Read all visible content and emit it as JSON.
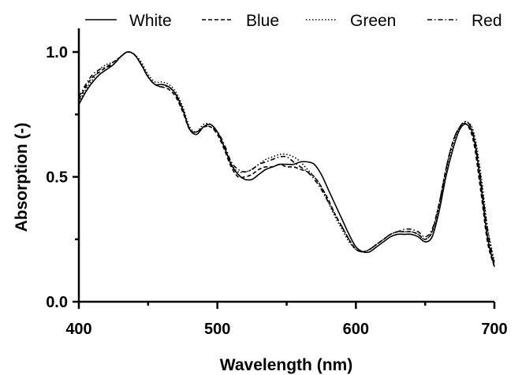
{
  "chart_data": {
    "type": "line",
    "title": "",
    "xlabel": "Wavelength (nm)",
    "ylabel": "Absorption (-)",
    "xlim": [
      400,
      700
    ],
    "ylim": [
      0.0,
      1.0
    ],
    "x_ticks": [
      "400",
      "500",
      "600",
      "700"
    ],
    "y_ticks": [
      "0.0",
      "0.5",
      "1.0"
    ],
    "legend_position": "top",
    "grid": false,
    "series": [
      {
        "name": "White",
        "style": "solid",
        "x": [
          400,
          405,
          410,
          415,
          420,
          425,
          430,
          435,
          440,
          445,
          450,
          455,
          460,
          465,
          470,
          475,
          480,
          485,
          490,
          495,
          500,
          505,
          510,
          515,
          520,
          525,
          530,
          535,
          540,
          545,
          550,
          555,
          560,
          565,
          570,
          575,
          580,
          585,
          590,
          595,
          600,
          605,
          610,
          615,
          620,
          625,
          630,
          635,
          640,
          645,
          650,
          655,
          660,
          665,
          670,
          675,
          680,
          685,
          690,
          695,
          700
        ],
        "values": [
          0.79,
          0.84,
          0.88,
          0.91,
          0.93,
          0.95,
          0.98,
          1.0,
          0.99,
          0.95,
          0.9,
          0.87,
          0.87,
          0.86,
          0.83,
          0.77,
          0.69,
          0.67,
          0.7,
          0.71,
          0.68,
          0.62,
          0.55,
          0.51,
          0.49,
          0.49,
          0.51,
          0.53,
          0.54,
          0.55,
          0.55,
          0.55,
          0.56,
          0.56,
          0.55,
          0.51,
          0.45,
          0.39,
          0.33,
          0.27,
          0.22,
          0.2,
          0.2,
          0.22,
          0.24,
          0.26,
          0.27,
          0.27,
          0.27,
          0.26,
          0.24,
          0.26,
          0.36,
          0.5,
          0.61,
          0.69,
          0.71,
          0.66,
          0.48,
          0.26,
          0.14
        ]
      },
      {
        "name": "Blue",
        "style": "dashed",
        "x": [
          400,
          405,
          410,
          415,
          420,
          425,
          430,
          435,
          440,
          445,
          450,
          455,
          460,
          465,
          470,
          475,
          480,
          485,
          490,
          495,
          500,
          505,
          510,
          515,
          520,
          525,
          530,
          535,
          540,
          545,
          550,
          555,
          560,
          565,
          570,
          575,
          580,
          585,
          590,
          595,
          600,
          605,
          610,
          615,
          620,
          625,
          630,
          635,
          640,
          645,
          650,
          655,
          660,
          665,
          670,
          675,
          680,
          685,
          690,
          695,
          700
        ],
        "values": [
          0.81,
          0.86,
          0.9,
          0.92,
          0.94,
          0.96,
          0.98,
          1.0,
          0.99,
          0.95,
          0.9,
          0.87,
          0.86,
          0.85,
          0.82,
          0.76,
          0.69,
          0.68,
          0.7,
          0.7,
          0.67,
          0.61,
          0.54,
          0.5,
          0.5,
          0.51,
          0.53,
          0.54,
          0.54,
          0.55,
          0.54,
          0.54,
          0.53,
          0.52,
          0.5,
          0.46,
          0.41,
          0.35,
          0.3,
          0.25,
          0.21,
          0.2,
          0.21,
          0.23,
          0.25,
          0.27,
          0.28,
          0.28,
          0.28,
          0.27,
          0.25,
          0.28,
          0.39,
          0.53,
          0.64,
          0.7,
          0.71,
          0.64,
          0.45,
          0.24,
          0.14
        ]
      },
      {
        "name": "Green",
        "style": "dotted",
        "x": [
          400,
          405,
          410,
          415,
          420,
          425,
          430,
          435,
          440,
          445,
          450,
          455,
          460,
          465,
          470,
          475,
          480,
          485,
          490,
          495,
          500,
          505,
          510,
          515,
          520,
          525,
          530,
          535,
          540,
          545,
          550,
          555,
          560,
          565,
          570,
          575,
          580,
          585,
          590,
          595,
          600,
          605,
          610,
          615,
          620,
          625,
          630,
          635,
          640,
          645,
          650,
          655,
          660,
          665,
          670,
          675,
          680,
          685,
          690,
          695,
          700
        ],
        "values": [
          0.8,
          0.85,
          0.89,
          0.93,
          0.95,
          0.96,
          0.98,
          1.0,
          0.99,
          0.96,
          0.91,
          0.88,
          0.88,
          0.87,
          0.84,
          0.78,
          0.7,
          0.68,
          0.71,
          0.71,
          0.68,
          0.62,
          0.55,
          0.52,
          0.52,
          0.53,
          0.55,
          0.57,
          0.58,
          0.59,
          0.59,
          0.58,
          0.56,
          0.53,
          0.5,
          0.46,
          0.4,
          0.34,
          0.29,
          0.24,
          0.21,
          0.2,
          0.21,
          0.23,
          0.25,
          0.27,
          0.28,
          0.28,
          0.28,
          0.27,
          0.25,
          0.28,
          0.38,
          0.52,
          0.63,
          0.7,
          0.72,
          0.68,
          0.52,
          0.3,
          0.16
        ]
      },
      {
        "name": "Red",
        "style": "dashdot",
        "x": [
          400,
          405,
          410,
          415,
          420,
          425,
          430,
          435,
          440,
          445,
          450,
          455,
          460,
          465,
          470,
          475,
          480,
          485,
          490,
          495,
          500,
          505,
          510,
          515,
          520,
          525,
          530,
          535,
          540,
          545,
          550,
          555,
          560,
          565,
          570,
          575,
          580,
          585,
          590,
          595,
          600,
          605,
          610,
          615,
          620,
          625,
          630,
          635,
          640,
          645,
          650,
          655,
          660,
          665,
          670,
          675,
          680,
          685,
          690,
          695,
          700
        ],
        "values": [
          0.82,
          0.87,
          0.91,
          0.93,
          0.94,
          0.95,
          0.98,
          1.0,
          0.99,
          0.95,
          0.9,
          0.87,
          0.86,
          0.86,
          0.83,
          0.77,
          0.69,
          0.68,
          0.7,
          0.7,
          0.68,
          0.63,
          0.56,
          0.53,
          0.52,
          0.53,
          0.55,
          0.56,
          0.57,
          0.58,
          0.58,
          0.56,
          0.54,
          0.52,
          0.49,
          0.45,
          0.4,
          0.35,
          0.3,
          0.25,
          0.21,
          0.2,
          0.21,
          0.23,
          0.25,
          0.27,
          0.28,
          0.29,
          0.29,
          0.28,
          0.26,
          0.29,
          0.39,
          0.53,
          0.64,
          0.7,
          0.72,
          0.67,
          0.5,
          0.29,
          0.15
        ]
      }
    ]
  }
}
